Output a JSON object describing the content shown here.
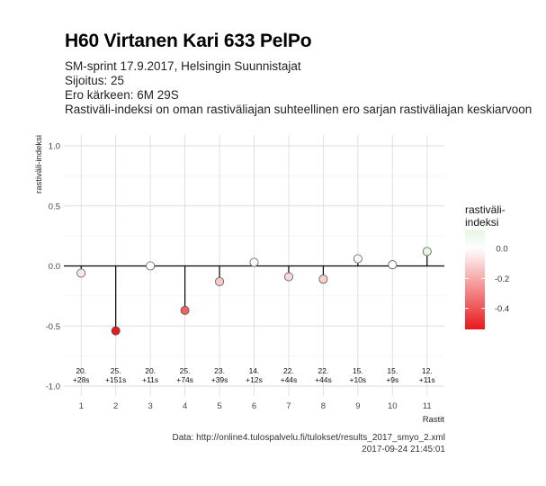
{
  "title": "H60 Virtanen Kari 633 PelPo",
  "subtitle_lines": [
    "SM-sprint 17.9.2017, Helsingin Suunnistajat",
    "Sijoitus: 25",
    "Ero kärkeen: 6M 29S",
    "Rastiväli-indeksi on oman rastiväliajan suhteellinen ero sarjan rastiväliajan keskiarvoon"
  ],
  "caption_lines": [
    "Data: http://online4.tulospalvelu.fi/tulokset/results_2017_smyo_2.xml",
    "2017-09-24 21:45:01"
  ],
  "colors": {
    "positive": "#e6f5e0",
    "neutral": "#ffffff",
    "negative": "#e8191c",
    "grid": "#dedede",
    "zero_line": "#000000"
  },
  "chart_data": {
    "type": "scatter",
    "style": "lollipop",
    "title": "H60 Virtanen Kari 633 PelPo",
    "xlabel": "Rastit",
    "ylabel": "rastiväli-indeksi",
    "ylim": [
      -1.0,
      1.0
    ],
    "yticks": [
      -1.0,
      -0.5,
      0.0,
      0.5,
      1.0
    ],
    "ytick_labels": [
      "-1.0",
      "-0.5",
      "0.0",
      "0.5",
      "1.0"
    ],
    "categories": [
      "1",
      "2",
      "3",
      "4",
      "5",
      "6",
      "7",
      "8",
      "9",
      "10",
      "11"
    ],
    "values": [
      -0.06,
      -0.54,
      0.0,
      -0.37,
      -0.13,
      0.03,
      -0.09,
      -0.11,
      0.06,
      0.01,
      0.12
    ],
    "annotations": [
      [
        "20.",
        "+28s"
      ],
      [
        "25.",
        "+151s"
      ],
      [
        "20.",
        "+11s"
      ],
      [
        "25.",
        "+74s"
      ],
      [
        "23.",
        "+39s"
      ],
      [
        "14.",
        "+12s"
      ],
      [
        "22.",
        "+44s"
      ],
      [
        "22.",
        "+44s"
      ],
      [
        "15.",
        "+10s"
      ],
      [
        "15.",
        "+9s"
      ],
      [
        "12.",
        "+11s"
      ]
    ],
    "legend": {
      "title": [
        "rastiväli-",
        "indeksi"
      ],
      "position": "right",
      "ticks": [
        0.0,
        -0.2,
        -0.4
      ],
      "tick_labels": [
        "0.0",
        "-0.2",
        "-0.4"
      ],
      "range": [
        -0.54,
        0.12
      ]
    },
    "grid": true
  }
}
